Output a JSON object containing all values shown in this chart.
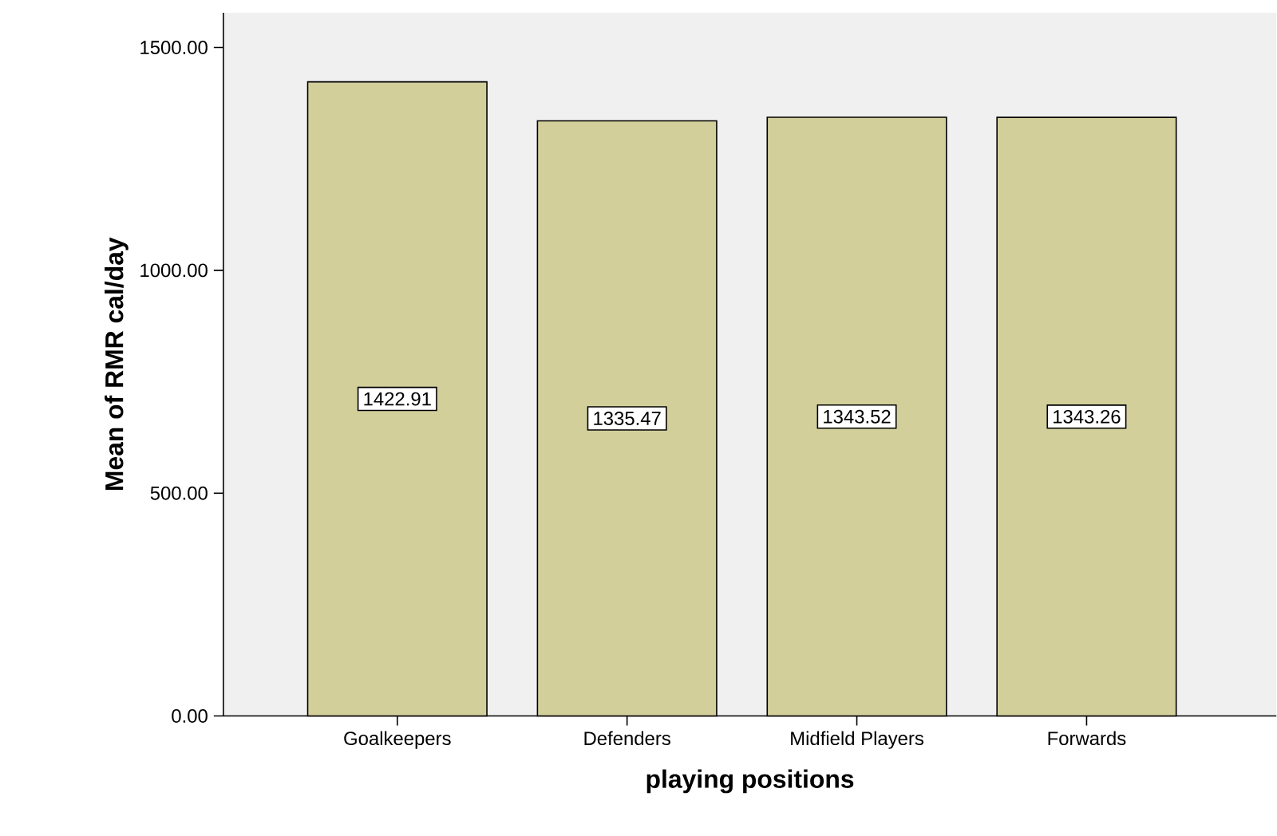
{
  "chart_data": {
    "type": "bar",
    "xlabel": "playing positions",
    "ylabel": "Mean of  RMR cal/day",
    "categories": [
      "Goalkeepers",
      "Defenders",
      "Midfield Players",
      "Forwards"
    ],
    "values": [
      1422.91,
      1335.47,
      1343.52,
      1343.26
    ],
    "color": "#d3cf9b",
    "ylim": [
      0,
      1578
    ],
    "yticks": [
      {
        "value": 0,
        "label": "0.00"
      },
      {
        "value": 500,
        "label": "500.00"
      },
      {
        "value": 1000,
        "label": "1000.00"
      },
      {
        "value": 1500,
        "label": "1500.00"
      }
    ],
    "data_labels": true,
    "grid": false
  }
}
